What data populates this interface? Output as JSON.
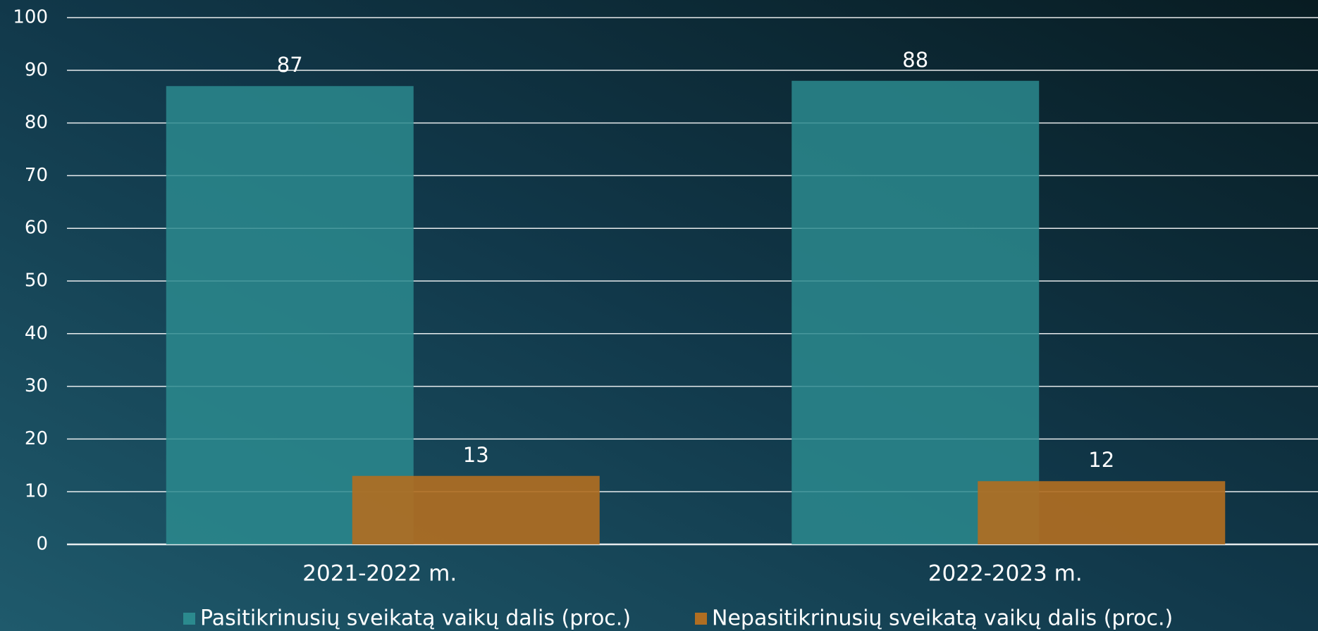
{
  "chart_data": {
    "type": "bar",
    "categories": [
      "2021-2022 m.",
      "2022-2023 m."
    ],
    "series": [
      {
        "name": "Pasitikrinusių sveikatą vaikų dalis (proc.)",
        "color": "#2b8a8e",
        "values": [
          87,
          88
        ]
      },
      {
        "name": "Nepasitikrinusių sveikatą vaikų dalis (proc.)",
        "color": "#b06e22",
        "values": [
          13,
          12
        ]
      }
    ],
    "ylim": [
      0,
      100
    ],
    "yticks": [
      0,
      10,
      20,
      30,
      40,
      50,
      60,
      70,
      80,
      90,
      100
    ],
    "grid": true,
    "legend": "bottom"
  }
}
